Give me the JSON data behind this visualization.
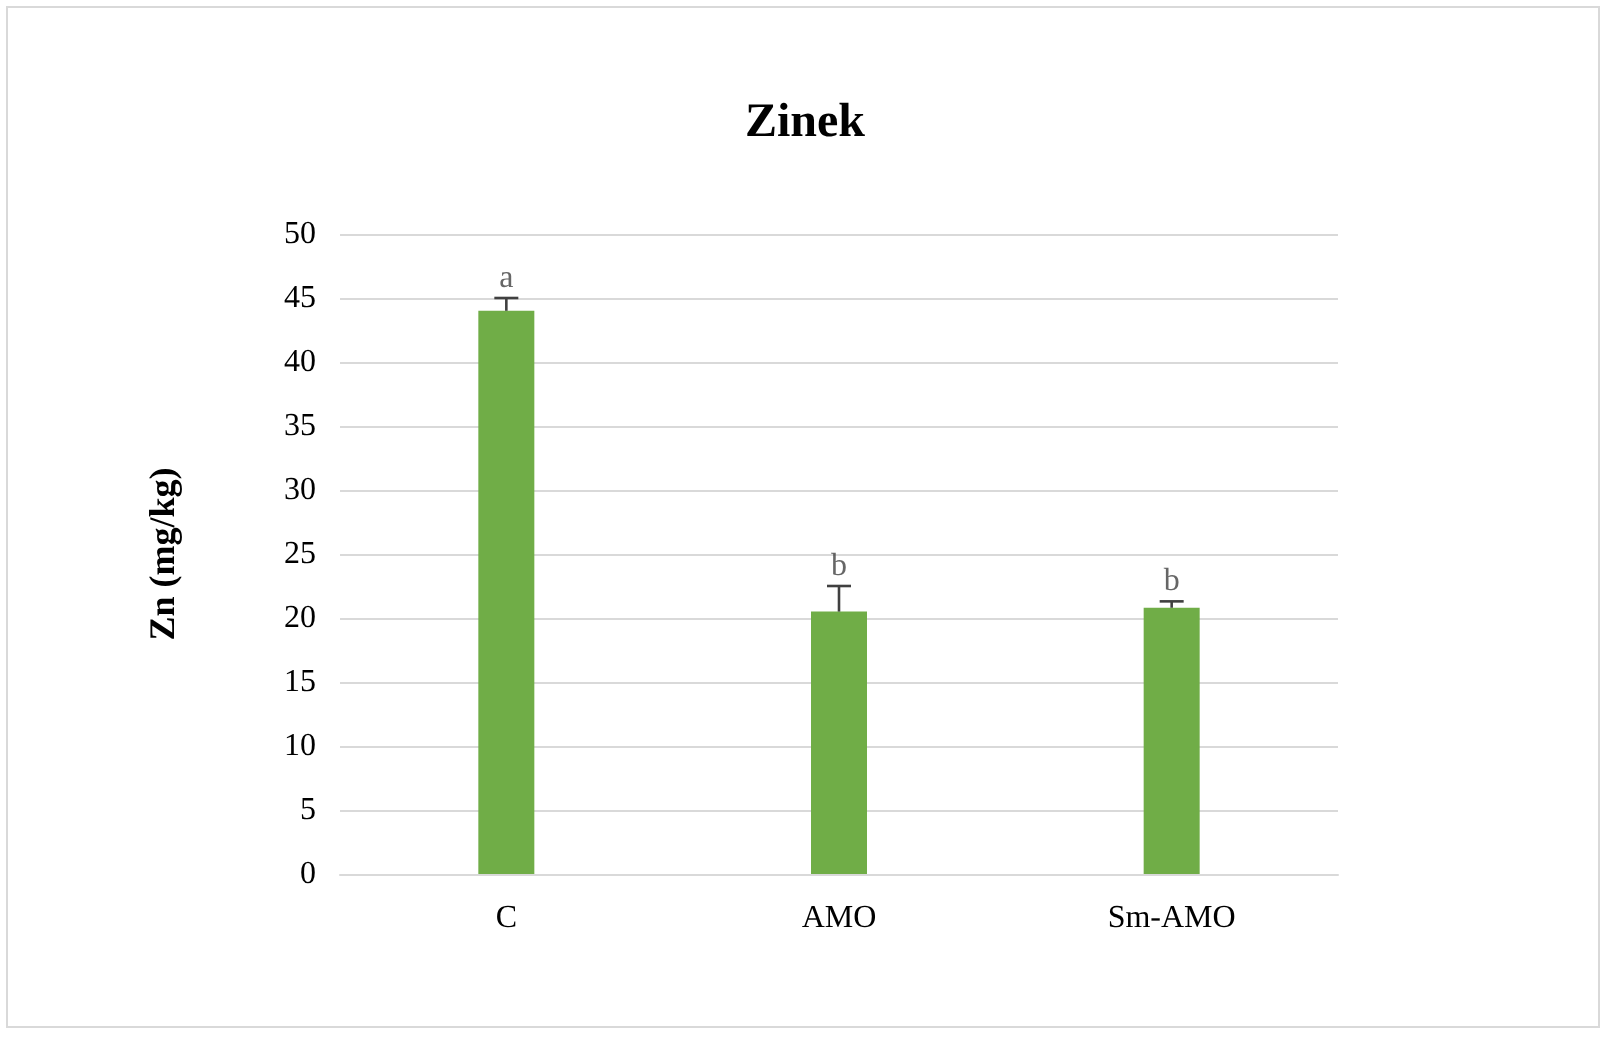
{
  "chart_data": {
    "type": "bar",
    "title": "Zinek",
    "ylabel": "Zn (mg/kg)",
    "categories": [
      "C",
      "AMO",
      "Sm-AMO"
    ],
    "series": [
      {
        "color": "#70ad47",
        "values": [
          44.0,
          20.5,
          20.8
        ],
        "errors": [
          1.0,
          2.0,
          0.5
        ]
      }
    ],
    "ylim": [
      0,
      50
    ],
    "yticks": [
      0,
      5,
      10,
      15,
      20,
      25,
      30,
      35,
      40,
      45,
      50
    ],
    "grid": "y",
    "annotations": [
      {
        "text": "a",
        "x": "C",
        "y": 45.0
      },
      {
        "text": "b",
        "x": "AMO",
        "y": 22.5
      },
      {
        "text": "b",
        "x": "Sm-AMO",
        "y": 21.3
      }
    ]
  }
}
